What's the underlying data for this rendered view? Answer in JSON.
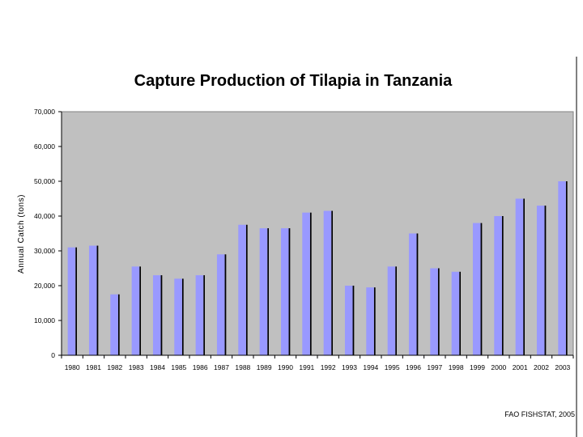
{
  "chart_data": {
    "type": "bar",
    "title": "Capture Production of Tilapia in Tanzania",
    "ylabel": "Annual Catch (tons)",
    "xlabel": "",
    "ylim": [
      0,
      70000
    ],
    "yticks": [
      "0",
      "10,000",
      "20,000",
      "30,000",
      "40,000",
      "50,000",
      "60,000",
      "70,000"
    ],
    "categories": [
      "1980",
      "1981",
      "1982",
      "1983",
      "1984",
      "1985",
      "1986",
      "1987",
      "1988",
      "1989",
      "1990",
      "1991",
      "1992",
      "1993",
      "1994",
      "1995",
      "1996",
      "1997",
      "1998",
      "1999",
      "2000",
      "2001",
      "2002",
      "2003"
    ],
    "values": [
      31000,
      31500,
      17500,
      25500,
      23000,
      22000,
      23000,
      29000,
      37500,
      36500,
      36500,
      41000,
      41500,
      20000,
      19500,
      25500,
      35000,
      25000,
      24000,
      38000,
      40000,
      45000,
      43000,
      50000
    ],
    "grid": false,
    "legend": "none",
    "colors": {
      "bar": "#9999ff",
      "plot_background": "#c0c0c0",
      "bar_shadow": "#000000"
    }
  },
  "source_note": "FAO FISHSTAT, 2005"
}
